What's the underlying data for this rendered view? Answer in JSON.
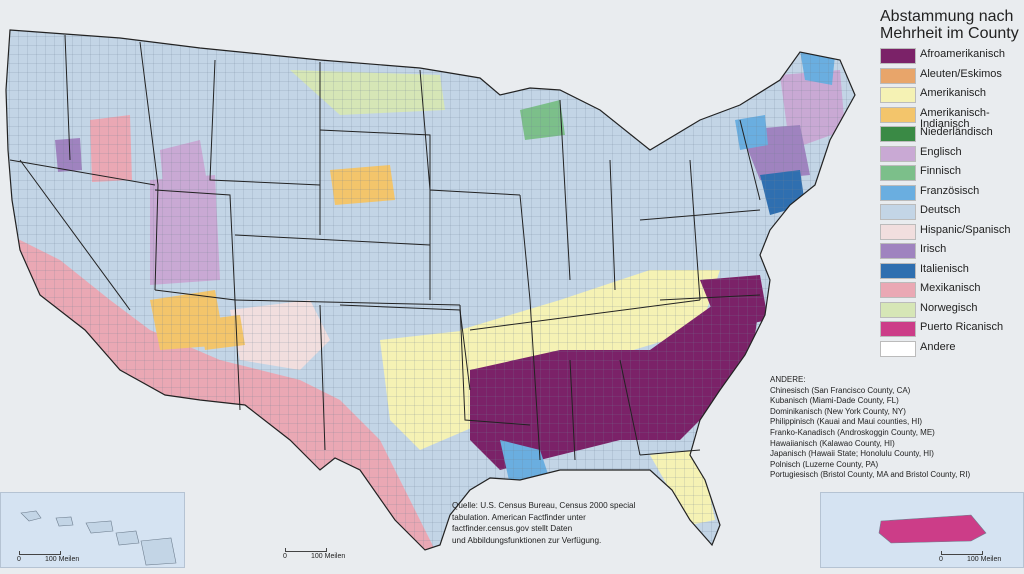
{
  "legend": {
    "title_line1": "Abstammung nach",
    "title_line2": "Mehrheit im County",
    "items": [
      {
        "label": "Afroamerikanisch",
        "color": "#7b2268"
      },
      {
        "label": "Aleuten/Eskimos",
        "color": "#e8a56a"
      },
      {
        "label": "Amerikanisch",
        "color": "#f5f2b4"
      },
      {
        "label": "Amerikanisch-\nIndianisch",
        "color": "#f3c56b"
      },
      {
        "label": "Niederländisch",
        "color": "#3a8a45"
      },
      {
        "label": "Englisch",
        "color": "#c9a9d4"
      },
      {
        "label": "Finnisch",
        "color": "#7cbf8a"
      },
      {
        "label": "Französisch",
        "color": "#6aaee0"
      },
      {
        "label": "Deutsch",
        "color": "#c3d5e6"
      },
      {
        "label": "Hispanic/Spanisch",
        "color": "#f1dede"
      },
      {
        "label": "Irisch",
        "color": "#9f83bf"
      },
      {
        "label": "Italienisch",
        "color": "#2f6fb0"
      },
      {
        "label": "Mexikanisch",
        "color": "#eaa8b4"
      },
      {
        "label": "Norwegisch",
        "color": "#d6e6b6"
      },
      {
        "label": "Puerto Ricanisch",
        "color": "#cc3d88"
      },
      {
        "label": "Andere",
        "color": "#ffffff"
      }
    ]
  },
  "andere": {
    "heading": "ANDERE:",
    "lines": [
      "Chinesisch (San Francisco County, CA)",
      "Kubanisch (Miami-Dade County, FL)",
      "Dominikanisch (New York County, NY)",
      "Philippinisch (Kauai and Maui counties, HI)",
      "Franko-Kanadisch (Androskoggin County, ME)",
      "Hawaiianisch (Kalawao County, HI)",
      "Japanisch (Hawaii State; Honolulu County, HI)",
      "Polnisch (Luzerne County, PA)",
      "Portugiesisch (Bristol County, MA and Bristol County, RI)"
    ]
  },
  "source_text": "Quelle: U.S. Census Bureau, Census 2000 special\ntabulation. American Factfinder unter\nfactfinder.census.gov  stellt Daten\nund Abbildungsfunktionen zur Verfügung.",
  "scale": {
    "zero": "0",
    "label": "100 Meilen"
  }
}
